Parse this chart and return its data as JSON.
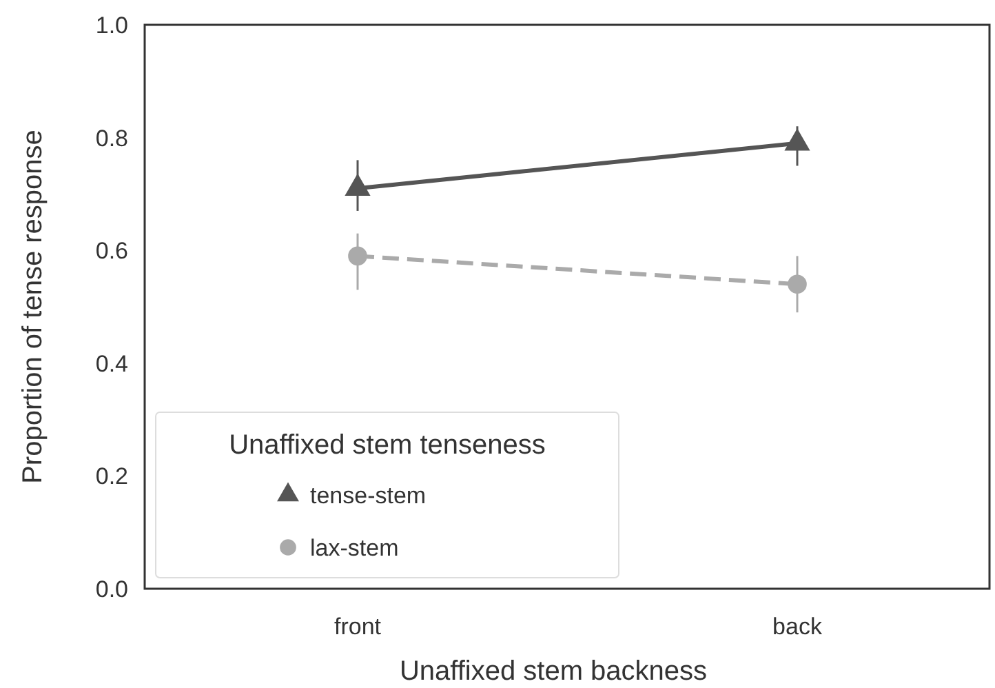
{
  "chart_data": {
    "type": "line",
    "xlabel": "Unaffixed stem backness",
    "ylabel": "Proportion of tense response",
    "legend_title": "Unaffixed stem tenseness",
    "categories": [
      "front",
      "back"
    ],
    "series": [
      {
        "name": "tense-stem",
        "color": "#555555",
        "values": [
          0.71,
          0.79
        ],
        "errors": [
          [
            0.67,
            0.76
          ],
          [
            0.75,
            0.82
          ]
        ],
        "marker": "triangle",
        "line_style": "solid"
      },
      {
        "name": "lax-stem",
        "color": "#aaaaaa",
        "values": [
          0.59,
          0.54
        ],
        "errors": [
          [
            0.53,
            0.63
          ],
          [
            0.49,
            0.59
          ]
        ],
        "marker": "circle",
        "line_style": "dashed"
      }
    ],
    "ylim": [
      0,
      1
    ],
    "yticks": [
      {
        "value": 0,
        "label": "0.0"
      },
      0.2,
      0.4,
      0.6,
      0.8,
      {
        "value": 1,
        "label": "1.0"
      }
    ],
    "grid": false,
    "legend": "bottom left"
  }
}
